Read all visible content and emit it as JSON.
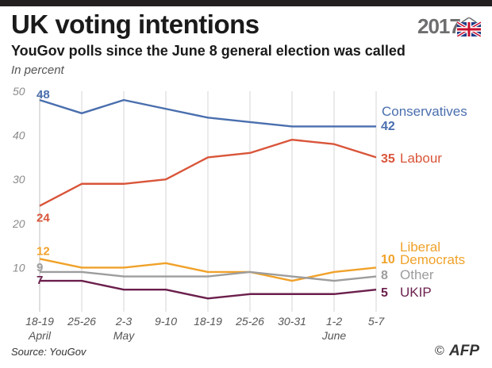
{
  "header": {
    "title": "UK voting intentions",
    "subtitle": "YouGov polls since the June 8 general election was called",
    "unit_note": "In percent",
    "year_badge": "2017"
  },
  "footer": {
    "source": "Source: YouGov",
    "copyright": "©",
    "agency": "AFP"
  },
  "chart_data": {
    "type": "line",
    "categories": [
      "18-19",
      "25-26",
      "2-3",
      "9-10",
      "18-19",
      "25-26",
      "30-31",
      "1-2",
      "5-7"
    ],
    "month_labels": [
      {
        "index": 0,
        "text": "April"
      },
      {
        "index": 2,
        "text": "May"
      },
      {
        "index": 7,
        "text": "June"
      }
    ],
    "ylim": [
      0,
      50
    ],
    "yticks": [
      10,
      20,
      30,
      40,
      50
    ],
    "grid": "vertical",
    "series": [
      {
        "name": "Conservatives",
        "color": "#4a6fae",
        "values": [
          48,
          45,
          48,
          46,
          44,
          43,
          42,
          42,
          42
        ],
        "start_label": "48",
        "end_label": "42"
      },
      {
        "name": "Labour",
        "color": "#d9553a",
        "values": [
          24,
          29,
          29,
          30,
          35,
          36,
          39,
          38,
          35
        ],
        "start_label": "24",
        "end_label": "35"
      },
      {
        "name": "Liberal Democrats",
        "name_lines": [
          "Liberal",
          "Democrats"
        ],
        "color": "#f0a22a",
        "values": [
          12,
          10,
          10,
          11,
          9,
          9,
          7,
          9,
          10
        ],
        "start_label": "12",
        "end_label": "10"
      },
      {
        "name": "Other",
        "color": "#9d9d9d",
        "values": [
          9,
          9,
          8,
          8,
          8,
          9,
          8,
          7,
          8
        ],
        "start_label": "9",
        "end_label": "8"
      },
      {
        "name": "UKIP",
        "color": "#6b1f4c",
        "values": [
          7,
          7,
          5,
          5,
          3,
          4,
          4,
          4,
          5
        ],
        "start_label": "7",
        "end_label": "5"
      }
    ]
  }
}
